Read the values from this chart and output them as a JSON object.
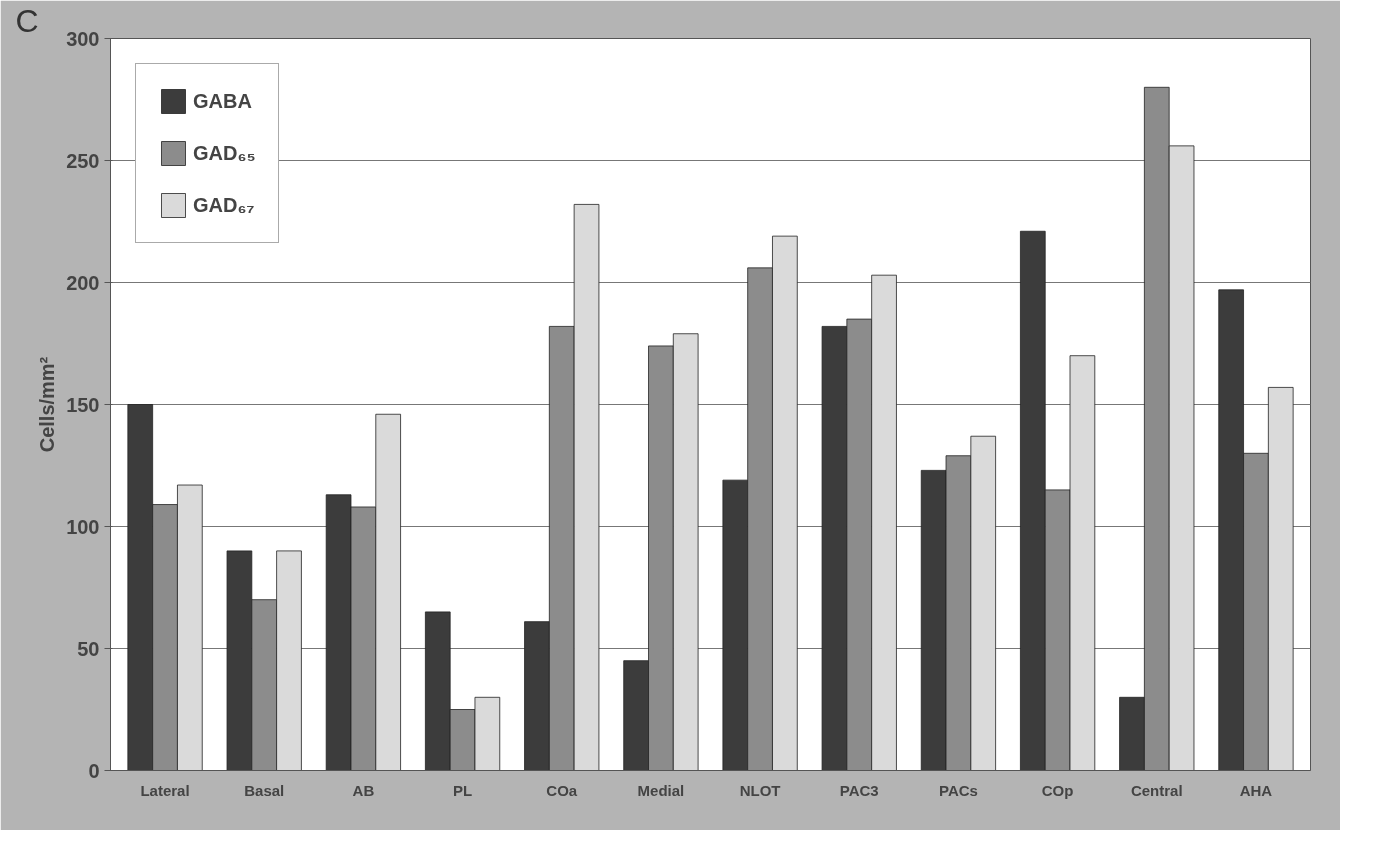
{
  "chart_data": {
    "type": "bar",
    "ylabel": "Cells/mm²",
    "annotations": [
      "C"
    ],
    "categories": [
      "Lateral",
      "Basal",
      "AB",
      "PL",
      "COa",
      "Medial",
      "NLOT",
      "PAC3",
      "PACs",
      "COp",
      "Central",
      "AHA"
    ],
    "series": [
      {
        "name": "GABA",
        "color": "#3c3c3c",
        "values": [
          150,
          90,
          113,
          65,
          61,
          45,
          119,
          182,
          123,
          221,
          30,
          197
        ]
      },
      {
        "name": "GAD₆₅",
        "color": "#8c8c8c",
        "values": [
          109,
          70,
          108,
          25,
          182,
          174,
          206,
          185,
          129,
          115,
          280,
          130
        ]
      },
      {
        "name": "GAD₆₇",
        "color": "#dadada",
        "values": [
          117,
          90,
          146,
          30,
          232,
          179,
          219,
          203,
          137,
          170,
          256,
          157
        ]
      }
    ],
    "ylim": [
      0,
      300
    ],
    "yticks": [
      0,
      50,
      100,
      150,
      200,
      250,
      300
    ],
    "grid": "y",
    "legend": "top left"
  }
}
